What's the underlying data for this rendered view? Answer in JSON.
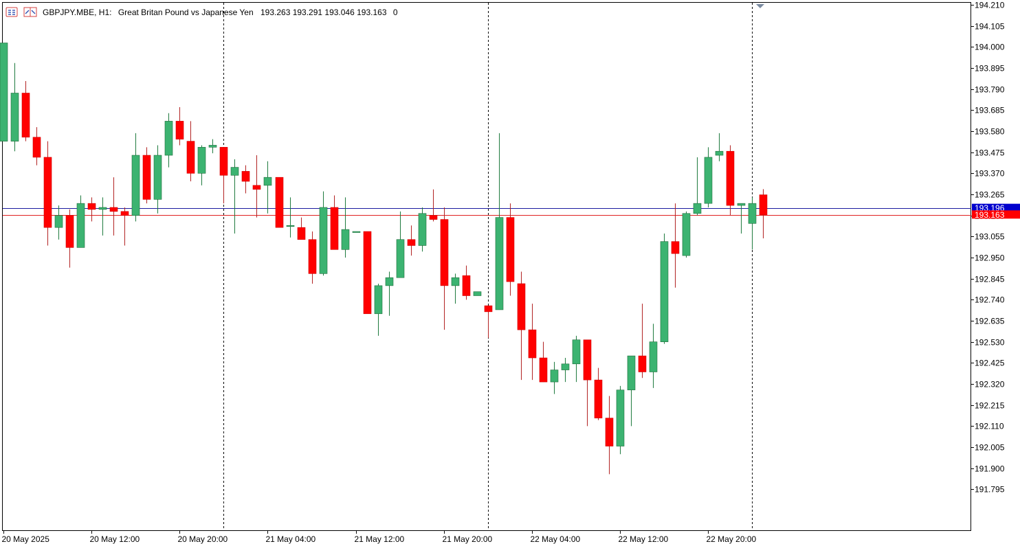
{
  "header": {
    "symbol": "GBPJPY.MBE, H1:",
    "description": "Great Britan Pound vs Japanese Yen",
    "ohlc": "193.263 193.291 193.046 193.163",
    "volume": "0"
  },
  "colors": {
    "bull": "#3cb371",
    "bear": "#ff0000",
    "wick_bull": "#1e7a3e",
    "wick_bear": "#b22222",
    "ask_line": "#1a1a9e",
    "bid_line": "#e02020",
    "ask_tag": "#0000cd",
    "bid_tag": "#ff0000"
  },
  "chart_data": {
    "type": "candlestick",
    "timeframe": "H1",
    "ylim": [
      191.69,
      194.21
    ],
    "y_ticks": [
      "194.210",
      "194.105",
      "194.000",
      "193.895",
      "193.790",
      "193.685",
      "193.580",
      "193.475",
      "193.370",
      "193.265",
      "193.160",
      "193.055",
      "192.950",
      "192.845",
      "192.740",
      "192.635",
      "192.530",
      "192.425",
      "192.320",
      "192.215",
      "192.110",
      "192.005",
      "191.900",
      "191.795"
    ],
    "x_labels": [
      "20 May 2025",
      "20 May 12:00",
      "20 May 20:00",
      "21 May 04:00",
      "21 May 12:00",
      "21 May 20:00",
      "22 May 04:00",
      "22 May 12:00",
      "22 May 20:00"
    ],
    "x_label_bars": [
      0,
      8,
      16,
      24,
      32,
      40,
      48,
      56,
      64
    ],
    "day_separator_bars": [
      20,
      44,
      68
    ],
    "price_lines": {
      "ask": {
        "value": 193.196,
        "label": "193.196"
      },
      "bid": {
        "value": 193.163,
        "label": "193.163"
      }
    },
    "candles": [
      {
        "o": 193.53,
        "h": 194.02,
        "l": 193.53,
        "c": 194.02
      },
      {
        "o": 193.53,
        "h": 193.92,
        "l": 193.48,
        "c": 193.77
      },
      {
        "o": 193.77,
        "h": 193.83,
        "l": 193.53,
        "c": 193.55
      },
      {
        "o": 193.55,
        "h": 193.6,
        "l": 193.41,
        "c": 193.45
      },
      {
        "o": 193.45,
        "h": 193.53,
        "l": 193.01,
        "c": 193.1
      },
      {
        "o": 193.1,
        "h": 193.21,
        "l": 193.04,
        "c": 193.16
      },
      {
        "o": 193.16,
        "h": 193.19,
        "l": 192.9,
        "c": 193.0
      },
      {
        "o": 193.0,
        "h": 193.26,
        "l": 193.0,
        "c": 193.22
      },
      {
        "o": 193.22,
        "h": 193.25,
        "l": 193.13,
        "c": 193.19
      },
      {
        "o": 193.19,
        "h": 193.25,
        "l": 193.06,
        "c": 193.2
      },
      {
        "o": 193.2,
        "h": 193.35,
        "l": 193.06,
        "c": 193.18
      },
      {
        "o": 193.18,
        "h": 193.2,
        "l": 193.01,
        "c": 193.16
      },
      {
        "o": 193.16,
        "h": 193.57,
        "l": 193.13,
        "c": 193.46
      },
      {
        "o": 193.46,
        "h": 193.5,
        "l": 193.22,
        "c": 193.24
      },
      {
        "o": 193.24,
        "h": 193.51,
        "l": 193.17,
        "c": 193.46
      },
      {
        "o": 193.46,
        "h": 193.67,
        "l": 193.4,
        "c": 193.63
      },
      {
        "o": 193.63,
        "h": 193.7,
        "l": 193.51,
        "c": 193.54
      },
      {
        "o": 193.53,
        "h": 193.63,
        "l": 193.33,
        "c": 193.37
      },
      {
        "o": 193.37,
        "h": 193.51,
        "l": 193.31,
        "c": 193.5
      },
      {
        "o": 193.5,
        "h": 193.54,
        "l": 193.47,
        "c": 193.51
      },
      {
        "o": 193.5,
        "h": 193.5,
        "l": 193.22,
        "c": 193.36
      },
      {
        "o": 193.36,
        "h": 193.44,
        "l": 193.07,
        "c": 193.4
      },
      {
        "o": 193.38,
        "h": 193.41,
        "l": 193.27,
        "c": 193.33
      },
      {
        "o": 193.31,
        "h": 193.46,
        "l": 193.15,
        "c": 193.29
      },
      {
        "o": 193.31,
        "h": 193.43,
        "l": 193.17,
        "c": 193.35
      },
      {
        "o": 193.35,
        "h": 193.35,
        "l": 193.1,
        "c": 193.1
      },
      {
        "o": 193.11,
        "h": 193.25,
        "l": 193.05,
        "c": 193.11
      },
      {
        "o": 193.1,
        "h": 193.15,
        "l": 193.04,
        "c": 193.04
      },
      {
        "o": 193.04,
        "h": 193.08,
        "l": 192.82,
        "c": 192.87
      },
      {
        "o": 192.87,
        "h": 193.28,
        "l": 192.86,
        "c": 193.2
      },
      {
        "o": 193.2,
        "h": 193.26,
        "l": 193.0,
        "c": 192.99
      },
      {
        "o": 192.99,
        "h": 193.25,
        "l": 192.95,
        "c": 193.09
      },
      {
        "o": 193.08,
        "h": 193.08,
        "l": 193.08,
        "c": 193.08
      },
      {
        "o": 193.08,
        "h": 193.08,
        "l": 192.67,
        "c": 192.67
      },
      {
        "o": 192.67,
        "h": 192.82,
        "l": 192.56,
        "c": 192.81
      },
      {
        "o": 192.81,
        "h": 192.88,
        "l": 192.66,
        "c": 192.85
      },
      {
        "o": 192.85,
        "h": 193.18,
        "l": 192.85,
        "c": 193.04
      },
      {
        "o": 193.04,
        "h": 193.11,
        "l": 192.96,
        "c": 193.01
      },
      {
        "o": 193.01,
        "h": 193.2,
        "l": 192.98,
        "c": 193.17
      },
      {
        "o": 193.16,
        "h": 193.29,
        "l": 193.13,
        "c": 193.14
      },
      {
        "o": 193.14,
        "h": 193.2,
        "l": 192.59,
        "c": 192.81
      },
      {
        "o": 192.81,
        "h": 192.87,
        "l": 192.72,
        "c": 192.85
      },
      {
        "o": 192.86,
        "h": 192.91,
        "l": 192.74,
        "c": 192.76
      },
      {
        "o": 192.76,
        "h": 192.78,
        "l": 192.76,
        "c": 192.78
      },
      {
        "o": 192.71,
        "h": 192.71,
        "l": 192.55,
        "c": 192.68
      },
      {
        "o": 192.69,
        "h": 193.57,
        "l": 192.69,
        "c": 193.15
      },
      {
        "o": 193.15,
        "h": 193.22,
        "l": 192.76,
        "c": 192.83
      },
      {
        "o": 192.82,
        "h": 192.88,
        "l": 192.34,
        "c": 192.59
      },
      {
        "o": 192.59,
        "h": 192.72,
        "l": 192.34,
        "c": 192.45
      },
      {
        "o": 192.45,
        "h": 192.53,
        "l": 192.33,
        "c": 192.33
      },
      {
        "o": 192.33,
        "h": 192.43,
        "l": 192.27,
        "c": 192.39
      },
      {
        "o": 192.39,
        "h": 192.45,
        "l": 192.33,
        "c": 192.42
      },
      {
        "o": 192.42,
        "h": 192.56,
        "l": 192.33,
        "c": 192.54
      },
      {
        "o": 192.54,
        "h": 192.54,
        "l": 192.11,
        "c": 192.34
      },
      {
        "o": 192.34,
        "h": 192.4,
        "l": 192.14,
        "c": 192.15
      },
      {
        "o": 192.15,
        "h": 192.26,
        "l": 191.87,
        "c": 192.01
      },
      {
        "o": 192.01,
        "h": 192.31,
        "l": 191.97,
        "c": 192.29
      },
      {
        "o": 192.29,
        "h": 192.46,
        "l": 192.11,
        "c": 192.46
      },
      {
        "o": 192.46,
        "h": 192.72,
        "l": 192.35,
        "c": 192.38
      },
      {
        "o": 192.38,
        "h": 192.62,
        "l": 192.3,
        "c": 192.53
      },
      {
        "o": 192.53,
        "h": 193.07,
        "l": 192.52,
        "c": 193.03
      },
      {
        "o": 193.03,
        "h": 193.22,
        "l": 192.8,
        "c": 192.97
      },
      {
        "o": 192.96,
        "h": 193.18,
        "l": 192.95,
        "c": 193.17
      },
      {
        "o": 193.17,
        "h": 193.45,
        "l": 193.16,
        "c": 193.22
      },
      {
        "o": 193.22,
        "h": 193.5,
        "l": 193.2,
        "c": 193.45
      },
      {
        "o": 193.46,
        "h": 193.57,
        "l": 193.43,
        "c": 193.48
      },
      {
        "o": 193.48,
        "h": 193.51,
        "l": 193.16,
        "c": 193.21
      },
      {
        "o": 193.21,
        "h": 193.22,
        "l": 193.07,
        "c": 193.22
      },
      {
        "o": 193.12,
        "h": 193.25,
        "l": 192.99,
        "c": 193.22
      },
      {
        "o": 193.263,
        "h": 193.291,
        "l": 193.046,
        "c": 193.163
      }
    ]
  }
}
